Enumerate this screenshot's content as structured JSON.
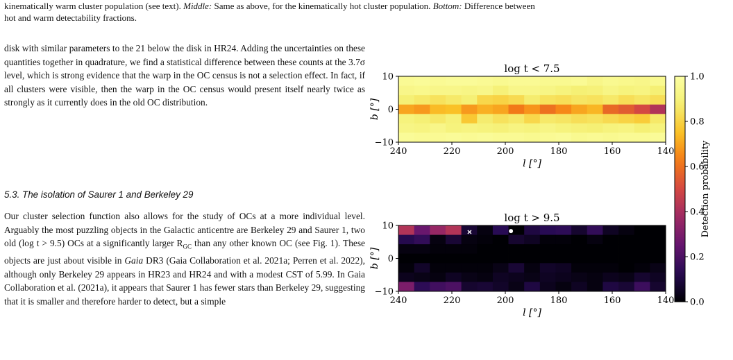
{
  "caption": {
    "line1_pre": "kinematically warm cluster population (see text). ",
    "middle_label": "Middle:",
    "line1_mid": " Same as above, for the kinematically hot cluster population. ",
    "bottom_label": "Bottom:",
    "line1_post": " Difference between",
    "line2": "hot and warm detectability fractions."
  },
  "para1": "disk with similar parameters to the 21 below the disk in HR24. Adding the uncertainties on these quantities together in quadrature, we find a statistical difference between these counts at the 3.7σ level, which is strong evidence that the warp in the OC census is not a selection effect. In fact, if all clusters were visible, then the warp in the OC census would present itself nearly twice as strongly as it currently does in the old OC distribution.",
  "section_heading": "5.3. The isolation of Saurer 1 and Berkeley 29",
  "para2": {
    "a": "Our cluster selection function also allows for the study of OCs at a more individual level. Arguably the most puzzling objects in the Galactic anticentre are Berkeley 29 and Saurer 1, two old (log t > 9.5) OCs at a significantly larger R",
    "sub": "GC",
    "b": " than any other known OC (see Fig. 1). These objects are just about visible in ",
    "gaia": "Gaia",
    "c": " DR3 (Gaia Collaboration et al. 2021a; Perren et al. 2022), although only Berkeley 29 appears in HR23 and HR24 and with a modest CST of 5.99. In Gaia Collaboration et al. (2021a), it appears that Saurer 1 has fewer stars than Berkeley 29, suggesting that it is smaller and therefore harder to detect, but a simple"
  },
  "chart_data": {
    "type": "heatmap",
    "colormap": "inferno",
    "colorbar_label": "Detection probability",
    "colorbar_ticks": [
      "0.0",
      "0.2",
      "0.4",
      "0.6",
      "0.8",
      "1.0"
    ],
    "colorbar_range": [
      0,
      1
    ],
    "panels": [
      {
        "title": "log t < 7.5",
        "xlabel": "l [°]",
        "ylabel": "b [°]",
        "xlim": [
          240,
          140
        ],
        "ylim": [
          -10,
          10
        ],
        "x_ticks": [
          "240",
          "220",
          "200",
          "180",
          "160",
          "140"
        ],
        "y_ticks": [
          "10",
          "0",
          "−10"
        ],
        "values": [
          [
            0.96,
            0.97,
            0.96,
            0.97,
            0.97,
            0.96,
            0.95,
            0.96,
            0.96,
            0.95,
            0.95,
            0.96,
            0.93,
            0.95,
            0.94,
            0.93,
            0.95
          ],
          [
            0.93,
            0.94,
            0.93,
            0.93,
            0.92,
            0.93,
            0.89,
            0.93,
            0.93,
            0.92,
            0.9,
            0.88,
            0.89,
            0.92,
            0.9,
            0.91,
            0.88
          ],
          [
            0.88,
            0.86,
            0.84,
            0.86,
            0.88,
            0.81,
            0.8,
            0.82,
            0.87,
            0.84,
            0.83,
            0.85,
            0.84,
            0.86,
            0.83,
            0.85,
            0.83
          ],
          [
            0.7,
            0.68,
            0.74,
            0.75,
            0.68,
            0.72,
            0.7,
            0.62,
            0.67,
            0.6,
            0.65,
            0.7,
            0.73,
            0.58,
            0.55,
            0.5,
            0.42
          ],
          [
            0.9,
            0.88,
            0.86,
            0.89,
            0.77,
            0.87,
            0.84,
            0.86,
            0.81,
            0.86,
            0.85,
            0.83,
            0.84,
            0.82,
            0.8,
            0.78,
            0.86
          ],
          [
            0.92,
            0.91,
            0.93,
            0.9,
            0.91,
            0.9,
            0.89,
            0.91,
            0.9,
            0.92,
            0.9,
            0.89,
            0.88,
            0.9,
            0.91,
            0.88,
            0.9
          ],
          [
            0.97,
            0.96,
            0.96,
            0.97,
            0.96,
            0.97,
            0.96,
            0.96,
            0.95,
            0.96,
            0.97,
            0.95,
            0.96,
            0.95,
            0.96,
            0.96,
            0.97
          ]
        ]
      },
      {
        "title": "log t > 9.5",
        "xlabel": "l [°]",
        "ylabel": "b [°]",
        "xlim": [
          240,
          140
        ],
        "ylim": [
          -10,
          10
        ],
        "x_ticks": [
          "240",
          "220",
          "200",
          "180",
          "160",
          "140"
        ],
        "y_ticks": [
          "10",
          "0",
          "−10"
        ],
        "values": [
          [
            0.42,
            0.26,
            0.36,
            0.42,
            0.08,
            0.02,
            0.13,
            0.0,
            0.1,
            0.13,
            0.14,
            0.07,
            0.15,
            0.05,
            0.02,
            0.0,
            0.0
          ],
          [
            0.12,
            0.15,
            0.02,
            0.08,
            0.02,
            0.01,
            0.0,
            0.07,
            0.05,
            0.01,
            0.01,
            0.0,
            0.02,
            0.0,
            0.0,
            0.0,
            0.0
          ],
          [
            0.02,
            0.02,
            0.01,
            0.01,
            0.01,
            0.0,
            0.0,
            0.0,
            0.0,
            0.0,
            0.0,
            0.0,
            0.0,
            0.0,
            0.0,
            0.0,
            0.0
          ],
          [
            0.0,
            0.0,
            0.0,
            0.0,
            0.0,
            0.0,
            0.0,
            0.0,
            0.0,
            0.0,
            0.0,
            0.0,
            0.0,
            0.0,
            0.0,
            0.0,
            0.0
          ],
          [
            0.01,
            0.06,
            0.01,
            0.01,
            0.01,
            0.01,
            0.03,
            0.08,
            0.02,
            0.06,
            0.05,
            0.01,
            0.01,
            0.01,
            0.0,
            0.01,
            0.03
          ],
          [
            0.04,
            0.03,
            0.02,
            0.05,
            0.03,
            0.02,
            0.05,
            0.04,
            0.03,
            0.05,
            0.04,
            0.03,
            0.02,
            0.04,
            0.03,
            0.07,
            0.05
          ],
          [
            0.3,
            0.14,
            0.18,
            0.2,
            0.07,
            0.08,
            0.06,
            0.03,
            0.1,
            0.04,
            0.02,
            0.05,
            0.02,
            0.1,
            0.08,
            0.17,
            0.07
          ]
        ],
        "markers": [
          {
            "label": "Saurer 1",
            "symbol": "x",
            "color": "#ffffff",
            "l": 213.4,
            "b": 8.0
          },
          {
            "label": "Berkeley 29",
            "symbol": "dot",
            "color": "#ffffff",
            "l": 197.9,
            "b": 8.3
          }
        ]
      }
    ]
  }
}
